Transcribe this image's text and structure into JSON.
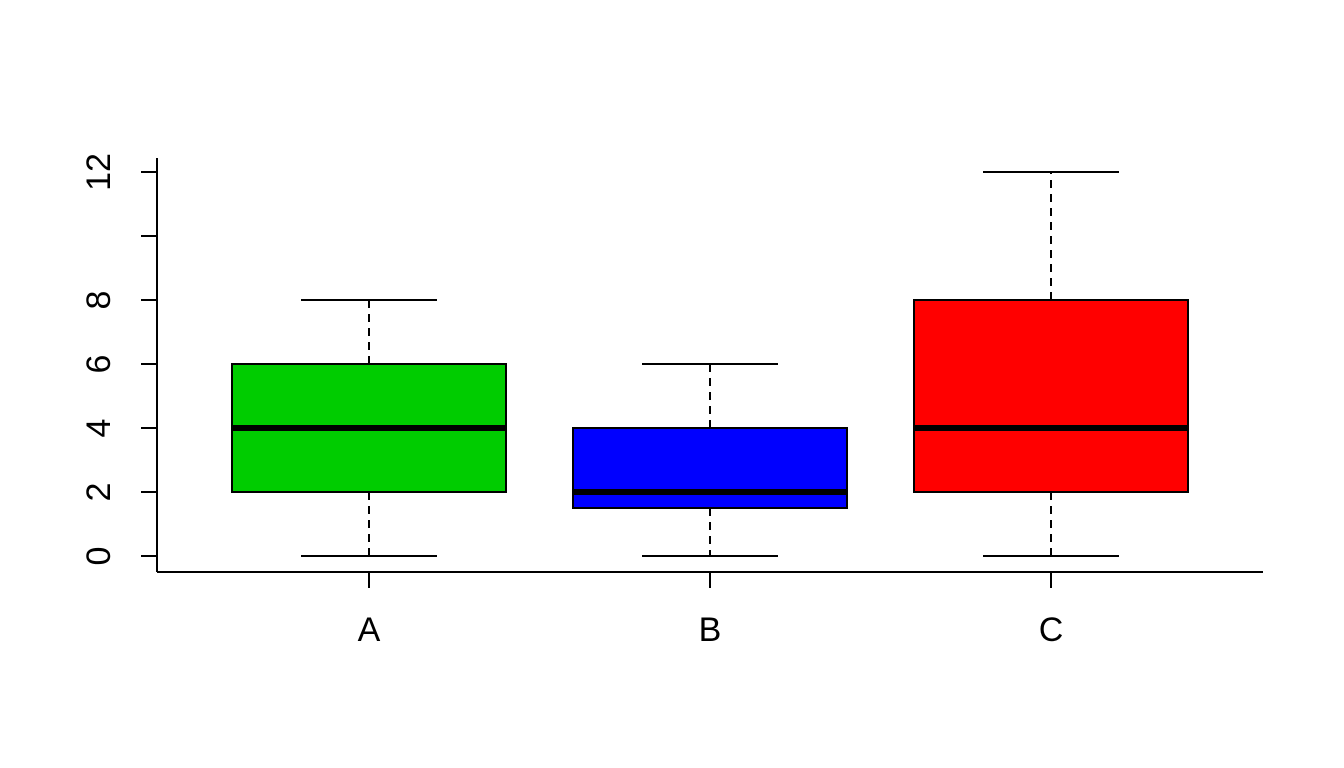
{
  "chart_data": {
    "type": "boxplot",
    "categories": [
      "A",
      "B",
      "C"
    ],
    "colors": [
      "#00CC00",
      "#0000FF",
      "#FF0000"
    ],
    "boxes": [
      {
        "name": "A",
        "min": 0,
        "q1": 2,
        "median": 4,
        "q3": 6,
        "max": 8
      },
      {
        "name": "B",
        "min": 0,
        "q1": 1.5,
        "median": 2,
        "q3": 4,
        "max": 6
      },
      {
        "name": "C",
        "min": 0,
        "q1": 2,
        "median": 4,
        "q3": 8,
        "max": 12
      }
    ],
    "yticks": [
      0,
      2,
      4,
      6,
      8,
      10,
      12
    ],
    "ytick_labels": [
      "0",
      "2",
      "4",
      "6",
      "8",
      "",
      "12"
    ],
    "ylim": [
      -0.5,
      12.5
    ],
    "title": "",
    "xlabel": "",
    "ylabel": "",
    "grid": false,
    "legend": false
  }
}
